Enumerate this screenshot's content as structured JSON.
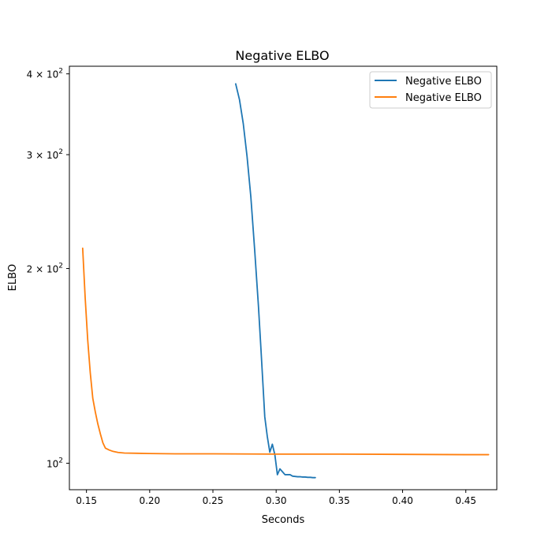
{
  "chart_data": {
    "type": "line",
    "title": "Negative ELBO",
    "xlabel": "Seconds",
    "ylabel": "ELBO",
    "xlim": [
      0.1365,
      0.4745
    ],
    "ylim": [
      91,
      411
    ],
    "yscale": "log",
    "grid": false,
    "legend_position": "top-right",
    "x_ticks": [
      {
        "value": 0.15,
        "label": "0.15"
      },
      {
        "value": 0.2,
        "label": "0.20"
      },
      {
        "value": 0.25,
        "label": "0.25"
      },
      {
        "value": 0.3,
        "label": "0.30"
      },
      {
        "value": 0.35,
        "label": "0.35"
      },
      {
        "value": 0.4,
        "label": "0.40"
      },
      {
        "value": 0.45,
        "label": "0.45"
      }
    ],
    "y_ticks": [
      {
        "value": 100,
        "base": "10",
        "mant": "",
        "exp": "2"
      },
      {
        "value": 200,
        "base": "10",
        "mant": "2 × ",
        "exp": "2"
      },
      {
        "value": 300,
        "base": "10",
        "mant": "3 × ",
        "exp": "2"
      },
      {
        "value": 400,
        "base": "10",
        "mant": "4 × ",
        "exp": "2"
      }
    ],
    "series": [
      {
        "name": "Negative ELBO",
        "color": "#1f77b4",
        "x": [
          0.268,
          0.271,
          0.274,
          0.277,
          0.28,
          0.283,
          0.286,
          0.288,
          0.29,
          0.291,
          0.293,
          0.295,
          0.297,
          0.299,
          0.301,
          0.303,
          0.305,
          0.307,
          0.309,
          0.311,
          0.313,
          0.315,
          0.317,
          0.319,
          0.321,
          0.323,
          0.325,
          0.327,
          0.329,
          0.331
        ],
        "y": [
          386,
          365,
          335,
          298,
          258,
          214,
          175,
          150,
          128,
          118,
          110,
          104,
          107,
          103,
          96,
          98,
          97,
          96,
          96,
          96,
          95.5,
          95.4,
          95.3,
          95.3,
          95.2,
          95.2,
          95.1,
          95.1,
          95.0,
          95.0
        ]
      },
      {
        "name": "Negative ELBO",
        "color": "#ff7f0e",
        "x": [
          0.147,
          0.149,
          0.151,
          0.153,
          0.155,
          0.157,
          0.159,
          0.161,
          0.163,
          0.165,
          0.168,
          0.171,
          0.175,
          0.18,
          0.19,
          0.2,
          0.22,
          0.25,
          0.3,
          0.35,
          0.4,
          0.45,
          0.468
        ],
        "y": [
          215,
          180,
          155,
          138,
          126,
          120,
          115,
          111,
          107.5,
          105.5,
          104.8,
          104.3,
          103.9,
          103.7,
          103.6,
          103.5,
          103.4,
          103.4,
          103.3,
          103.3,
          103.2,
          103.1,
          103.1
        ]
      }
    ]
  }
}
